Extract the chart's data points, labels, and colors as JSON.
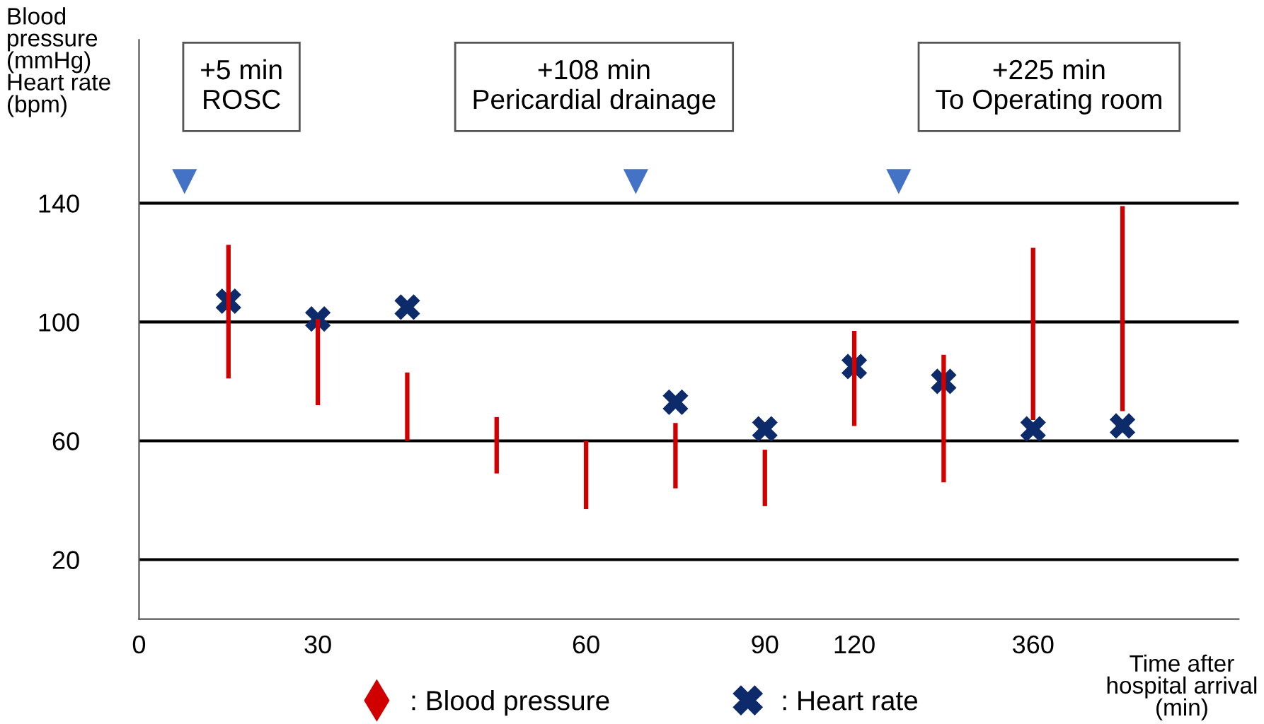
{
  "chart_data": {
    "type": "bar",
    "ylabel": "Blood\npressure\n(mmHg)\nHeart rate\n(bpm)",
    "xlabel": "Time after\nhospital arrival\n(min)",
    "categories": [
      "0",
      null,
      "30",
      null,
      null,
      "60",
      null,
      "90",
      "120",
      null,
      "360",
      null
    ],
    "series": [
      {
        "name": ": Blood pressure",
        "color": "#d00000",
        "base": [
          null,
          81,
          72,
          60,
          49,
          37,
          44,
          38,
          65,
          46,
          67,
          70
        ],
        "values": [
          null,
          45,
          29,
          23,
          19,
          23,
          22,
          19,
          32,
          43,
          58,
          69
        ]
      },
      {
        "name": ": Heart rate",
        "type": "scatter",
        "color": "#0d2b6b",
        "marker": "cross",
        "values": [
          null,
          107,
          101,
          105,
          null,
          null,
          73,
          64,
          85,
          80,
          64,
          65
        ]
      }
    ],
    "ylim": [
      0,
      195
    ],
    "yticks": [
      20,
      60,
      100,
      140
    ],
    "grid": "y",
    "legend": "bottom",
    "annotations": [
      "+5 min\nROSC",
      "+108 min\nPericardial drainage",
      "+225 min\nTo Operating room"
    ]
  }
}
